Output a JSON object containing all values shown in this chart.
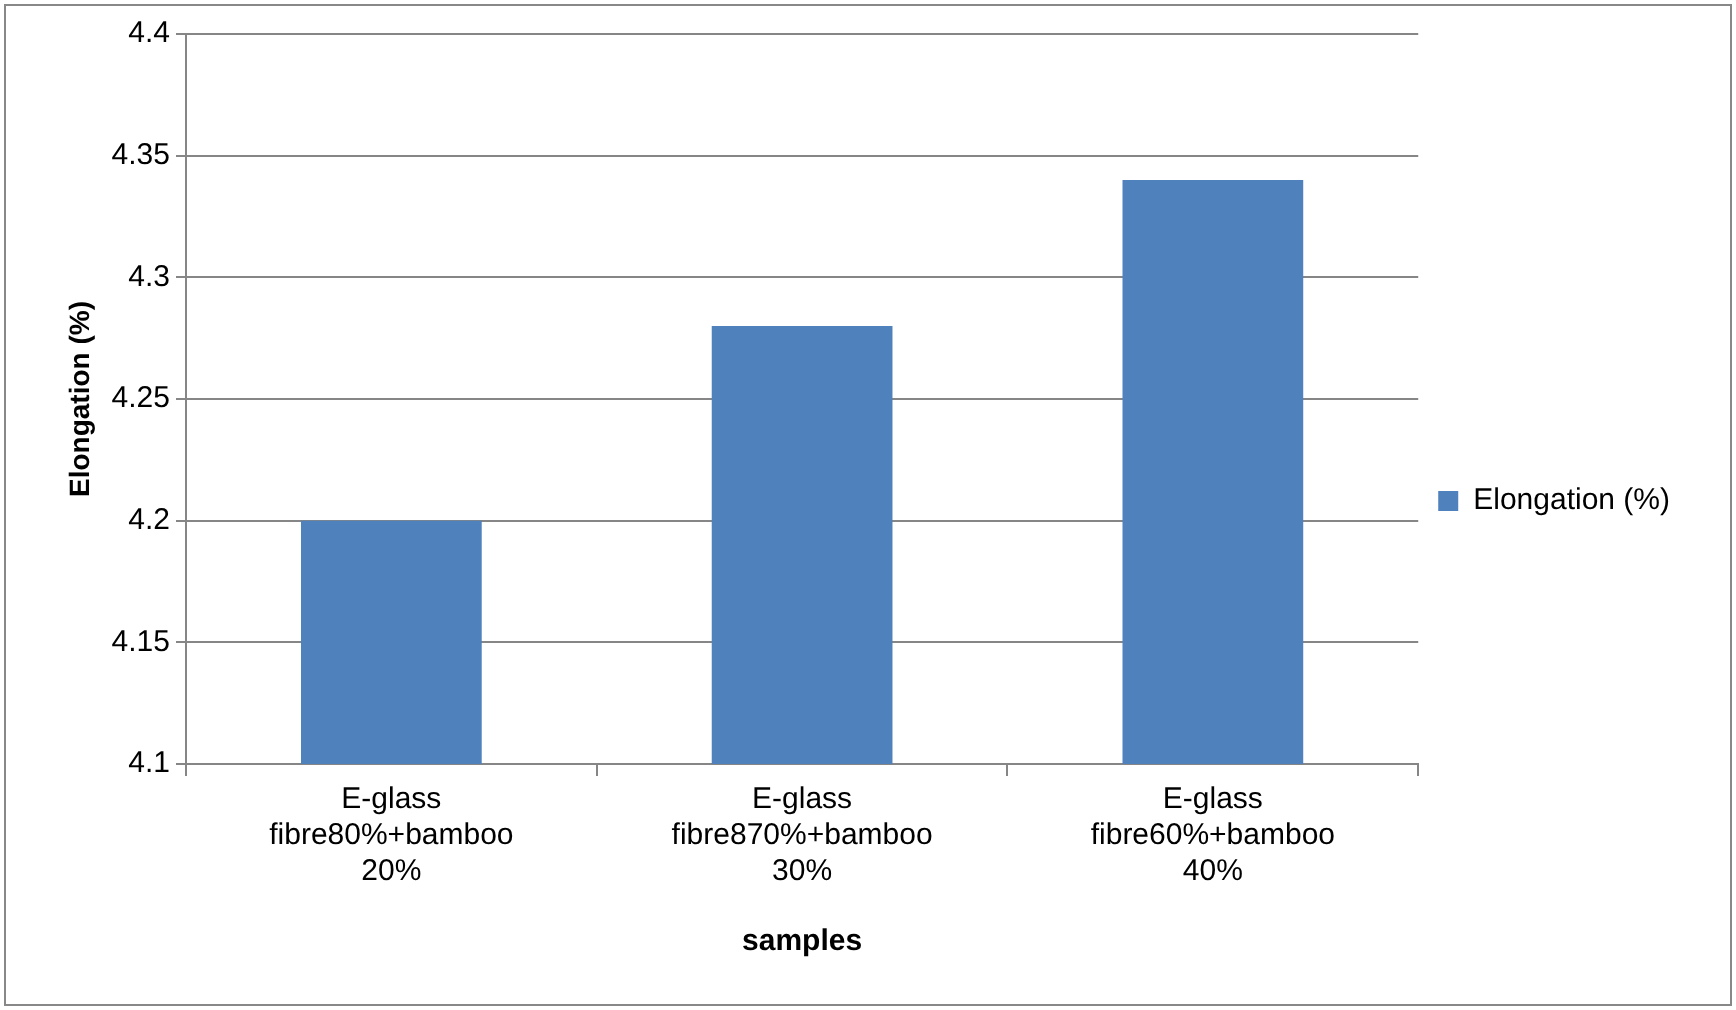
{
  "chart_data": {
    "type": "bar",
    "xlabel": "samples",
    "ylabel": "Elongation (%)",
    "categories": [
      "E-glass fibre80%+bamboo 20%",
      "E-glass fibre870%+bamboo 30%",
      "E-glass fibre60%+bamboo 40%"
    ],
    "series": [
      {
        "name": "Elongation (%)",
        "color": "#4f81bd",
        "values": [
          4.2,
          4.28,
          4.34
        ]
      }
    ],
    "ylim": [
      4.1,
      4.4
    ],
    "yticks": [
      4.1,
      4.15,
      4.2,
      4.25,
      4.3,
      4.35,
      4.4
    ],
    "grid": "y",
    "legend": "right"
  }
}
